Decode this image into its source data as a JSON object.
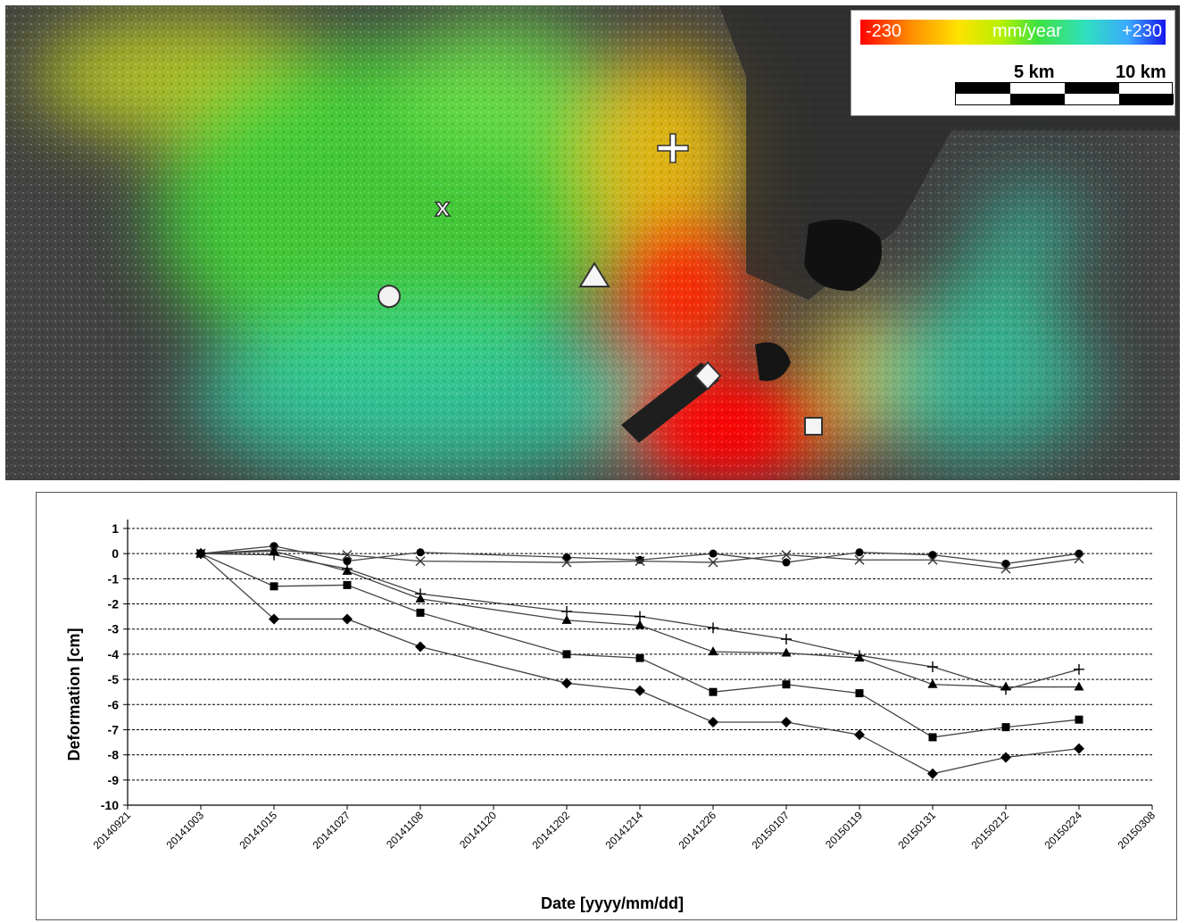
{
  "map": {
    "colorbar": {
      "min_label": "-230",
      "unit_label": "mm/year",
      "max_label": "+230"
    },
    "scalebar": {
      "label_5": "5 km",
      "label_10": "10 km"
    },
    "colors": {
      "high_subsidence": "#ff0000",
      "moderate": "#ffcc00",
      "stable": "#33dd33",
      "uplift": "#1616ee"
    },
    "markers": [
      "circle",
      "x",
      "triangle",
      "plus",
      "diamond",
      "square"
    ]
  },
  "chart_data": {
    "type": "line",
    "xlabel": "Date [yyyy/mm/dd]",
    "ylabel": "Deformation [cm]",
    "ylim": [
      -10,
      1
    ],
    "yticks": [
      1,
      0,
      -1,
      -2,
      -3,
      -4,
      -5,
      -6,
      -7,
      -8,
      -9,
      -10
    ],
    "x_tick_labels": [
      "20140921",
      "20141003",
      "20141015",
      "20141027",
      "20141108",
      "20141120",
      "20141202",
      "20141214",
      "20141226",
      "20150107",
      "20150119",
      "20150131",
      "20150212",
      "20150224",
      "20150308"
    ],
    "x_dates": [
      "20141003",
      "20141015",
      "20141027",
      "20141108",
      "20141202",
      "20141214",
      "20141226",
      "20150107",
      "20150119",
      "20150131",
      "20150212",
      "20150224"
    ],
    "grid": "horizontal dashed",
    "series": [
      {
        "marker": "circle",
        "values": [
          0,
          0.3,
          -0.3,
          0.05,
          -0.15,
          -0.25,
          0,
          -0.35,
          0.05,
          -0.05,
          -0.4,
          0
        ]
      },
      {
        "marker": "x",
        "values": [
          0,
          0.15,
          -0.05,
          -0.3,
          -0.35,
          -0.3,
          -0.35,
          -0.05,
          -0.25,
          -0.25,
          -0.6,
          -0.2
        ]
      },
      {
        "marker": "plus",
        "values": [
          0,
          -0.05,
          -0.6,
          -1.6,
          -2.3,
          -2.5,
          -2.95,
          -3.4,
          -4.05,
          -4.5,
          -5.4,
          -4.6
        ]
      },
      {
        "marker": "triangle",
        "values": [
          0,
          0.1,
          -0.7,
          -1.8,
          -2.65,
          -2.85,
          -3.9,
          -3.95,
          -4.15,
          -5.2,
          -5.3,
          -5.3
        ]
      },
      {
        "marker": "square",
        "values": [
          0,
          -1.3,
          -1.25,
          -2.35,
          -4.0,
          -4.15,
          -5.5,
          -5.2,
          -5.55,
          -7.3,
          -6.9,
          -6.6
        ]
      },
      {
        "marker": "diamond",
        "values": [
          0,
          -2.6,
          -2.6,
          -3.7,
          -5.15,
          -5.45,
          -6.7,
          -6.7,
          -7.2,
          -8.75,
          -8.1,
          -7.75
        ]
      }
    ]
  }
}
